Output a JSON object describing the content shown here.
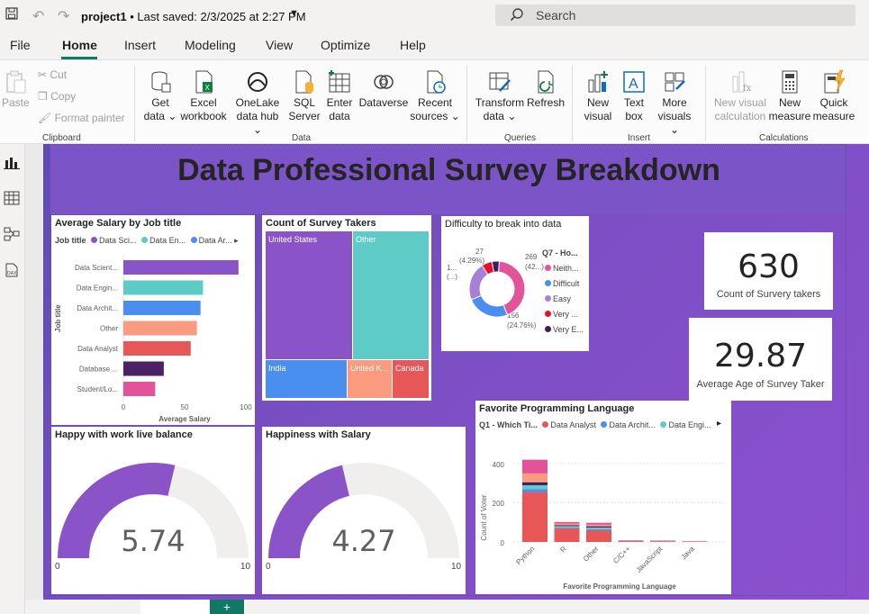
{
  "window": {
    "filename": "project1",
    "saved": "• Last saved: 2/3/2025 at 2:27 PM",
    "search_placeholder": "Search"
  },
  "menu": [
    "File",
    "Home",
    "Insert",
    "Modeling",
    "View",
    "Optimize",
    "Help"
  ],
  "ribbon": {
    "clipboard": {
      "paste": "Paste",
      "cut": "Cut",
      "copy": "Copy",
      "format_painter": "Format painter",
      "label": "Clipboard"
    },
    "data": {
      "get_data": [
        "Get",
        "data ⌄"
      ],
      "excel": [
        "Excel",
        "workbook"
      ],
      "onelake": [
        "OneLake",
        "data hub ⌄"
      ],
      "sql": [
        "SQL",
        "Server"
      ],
      "enter": [
        "Enter",
        "data"
      ],
      "dataverse": "Dataverse",
      "recent": [
        "Recent",
        "sources ⌄"
      ],
      "label": "Data"
    },
    "queries": {
      "transform": [
        "Transform",
        "data ⌄"
      ],
      "refresh": "Refresh",
      "label": "Queries"
    },
    "insert": {
      "new_visual": [
        "New",
        "visual"
      ],
      "text_box": [
        "Text",
        "box"
      ],
      "more_visuals": [
        "More",
        "visuals ⌄"
      ],
      "label": "Insert"
    },
    "calculations": {
      "new_visual_calc": [
        "New visual",
        "calculation"
      ],
      "new_measure": [
        "New",
        "measure"
      ],
      "quick_measure": [
        "Quick",
        "measure"
      ],
      "label": "Calculations"
    }
  },
  "report": {
    "title": "Data  Professional Survey Breakdown",
    "colors": {
      "purple": "#8a54c8",
      "teal": "#5ecbc6",
      "blue": "#4a8ff0",
      "salmon": "#fa9a7e",
      "red": "#e85757",
      "dark": "#4b2364",
      "pink": "#e2539a"
    },
    "avg_salary": {
      "title": "Average Salary by Job title",
      "legend_title": "Job title",
      "legend": [
        "Data Sci...",
        "Data En...",
        "Data Ar..."
      ],
      "ylabel": "Job title",
      "xlabel": "Average Salary",
      "ticks": [
        "0",
        "50",
        "100"
      ]
    },
    "survey_takers": {
      "title": "Count of Survey Takers",
      "cells": [
        "United States",
        "Other",
        "India",
        "United K...",
        "Canada"
      ]
    },
    "difficulty": {
      "title": "Difficulty to break into data",
      "legend_title": "Q7 - Ho...",
      "legend": [
        "Neith...",
        "Difficult",
        "Easy",
        "Very ...",
        "Very E..."
      ],
      "labels": {
        "top": "27",
        "top_pct": "(4.29%)",
        "left": "1...",
        "left_pct": "(...)",
        "right": "269",
        "right_pct": "(42...)",
        "bottom": "156",
        "bottom_pct": "(24.76%)"
      }
    },
    "card_count": {
      "value": "630",
      "label": "Count of Survery takers"
    },
    "card_age": {
      "value": "29.87",
      "label": "Average Age of Survey Taker"
    },
    "work_life": {
      "title": "Happy with work live balance",
      "value": "5.74",
      "min": "0",
      "max": "10"
    },
    "salary_happiness": {
      "title": "Happiness with Salary",
      "value": "4.27",
      "min": "0",
      "max": "10"
    },
    "prog_lang": {
      "title": "Favorite Programming Language",
      "legend_title": "Q1 - Which Ti...",
      "legend": [
        "Data Analyst",
        "Data Archit...",
        "Data Engi..."
      ],
      "ylabel": "Count of Voter",
      "xlabel": "Favorite Programming Language",
      "yticks": [
        "400",
        "200",
        "0"
      ]
    }
  },
  "chart_data": [
    {
      "type": "bar",
      "title": "Average Salary by Job title",
      "xlabel": "Average Salary",
      "ylabel": "Job title",
      "categories": [
        "Data Scient...",
        "Data Engin...",
        "Data Archit...",
        "Other",
        "Data Analyst",
        "Database ...",
        "Student/Lo..."
      ],
      "values": [
        94,
        65,
        63,
        60,
        55,
        33,
        26
      ],
      "xlim": [
        0,
        100
      ]
    },
    {
      "type": "pie",
      "title": "Difficulty to break into data",
      "categories": [
        "Neither",
        "Difficult",
        "Easy",
        "Very Difficult",
        "Very Easy"
      ],
      "values": [
        269,
        156,
        140,
        38,
        27
      ]
    },
    {
      "type": "bar",
      "title": "Favorite Programming Language",
      "xlabel": "Favorite Programming Language",
      "ylabel": "Count of Voter",
      "categories": [
        "Python",
        "R",
        "Other",
        "C/C++",
        "JavaScript",
        "Java"
      ],
      "series": [
        {
          "name": "Data Analyst",
          "values": [
            255,
            70,
            60,
            4,
            3,
            2
          ]
        },
        {
          "name": "Data Archit...",
          "values": [
            15,
            5,
            6,
            1,
            1,
            0
          ]
        },
        {
          "name": "Data Engi...",
          "values": [
            20,
            6,
            8,
            1,
            1,
            1
          ]
        },
        {
          "values": [
            15,
            5,
            6,
            1,
            1,
            0
          ]
        },
        {
          "values": [
            45,
            8,
            8,
            1,
            1,
            1
          ]
        },
        {
          "values": [
            70,
            8,
            10,
            1,
            1,
            1
          ]
        }
      ],
      "ylim": [
        0,
        450
      ]
    }
  ]
}
